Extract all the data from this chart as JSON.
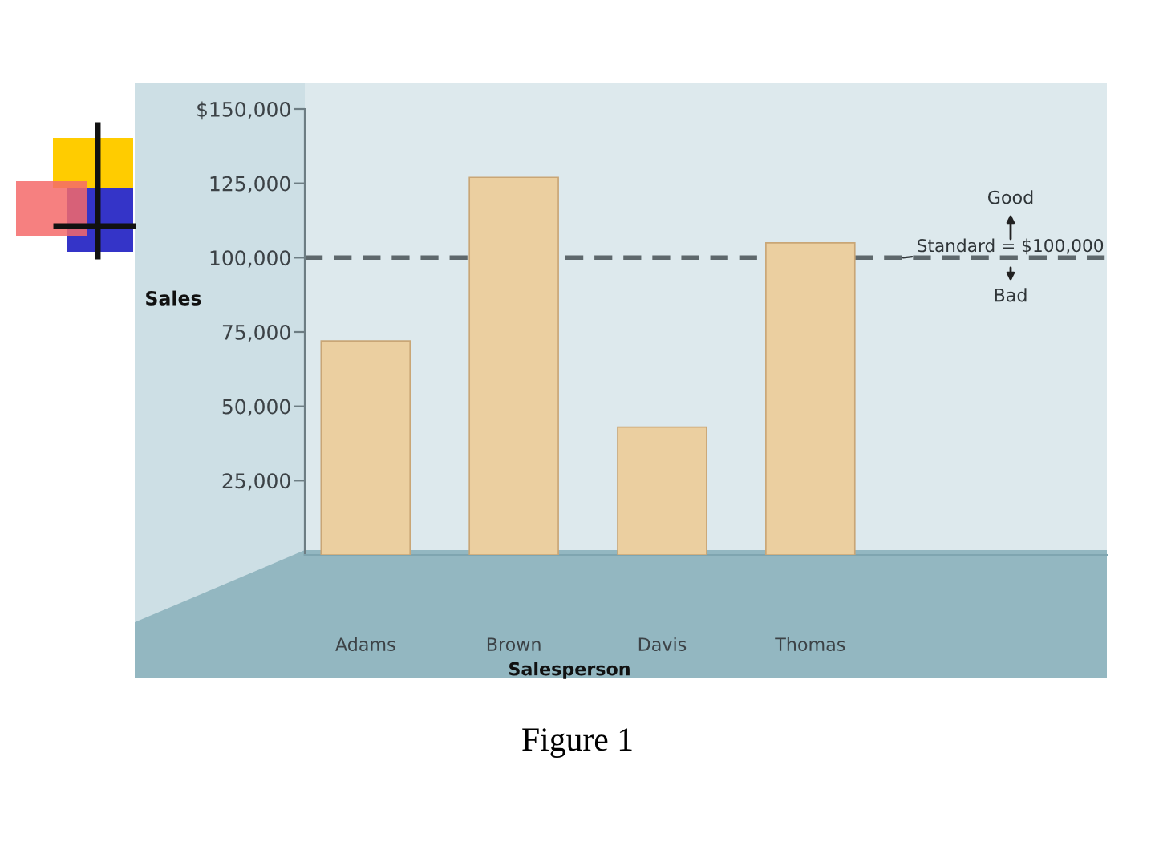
{
  "chart_data": {
    "type": "bar",
    "xlabel": "Salesperson",
    "ylabel": "Sales",
    "categories": [
      "Adams",
      "Brown",
      "Davis",
      "Thomas"
    ],
    "values": [
      72000,
      127000,
      43000,
      105000
    ],
    "color": "#ebcfa0",
    "ylim": [
      0,
      150000
    ],
    "yticks": [
      {
        "value": 25000,
        "label": "25,000"
      },
      {
        "value": 50000,
        "label": "50,000"
      },
      {
        "value": 75000,
        "label": "75,000"
      },
      {
        "value": 100000,
        "label": "100,000"
      },
      {
        "value": 125000,
        "label": "125,000"
      },
      {
        "value": 150000,
        "label": "$150,000"
      }
    ],
    "ref_lines": [
      {
        "axis": "y",
        "value": 100000,
        "label": "Standard = $100,000",
        "color": "#5e686c",
        "line_style": "dashed"
      }
    ],
    "annotations": [
      "Good",
      "Bad",
      "Figure 1"
    ]
  }
}
